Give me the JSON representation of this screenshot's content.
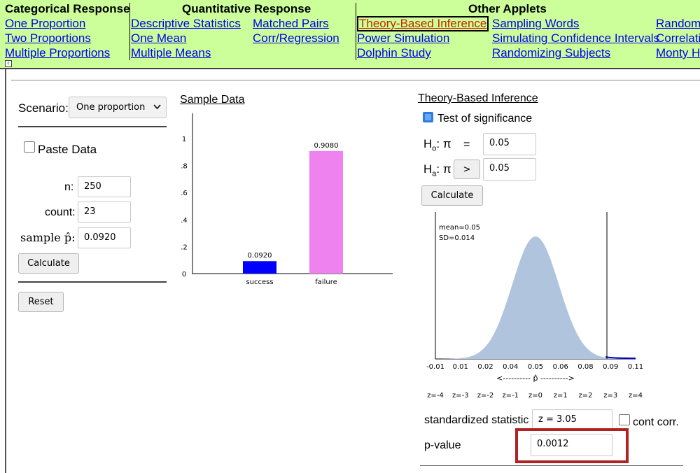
{
  "nav": {
    "categorical": {
      "heading": "Categorical Response",
      "links": [
        "One Proportion",
        "Two Proportions",
        "Multiple Proportions"
      ]
    },
    "quantitative": {
      "heading": "Quantitative Response",
      "col1": [
        "Descriptive Statistics",
        "One Mean",
        "Multiple Means"
      ],
      "col2": [
        "Matched Pairs",
        "Corr/Regression"
      ]
    },
    "other": {
      "heading": "Other Applets",
      "col1": [
        "Theory-Based Inference",
        "Power Simulation",
        "Dolphin Study"
      ],
      "col2": [
        "Sampling Words",
        "Simulating Confidence Intervals",
        "Randomizing Subjects"
      ],
      "col3": [
        "Random",
        "Correlatic",
        "Monty Ha"
      ]
    },
    "active_link": "Theory-Based Inference"
  },
  "left_panel": {
    "scenario_label": "Scenario:",
    "scenario_value": "One proportion",
    "paste_data_label": "Paste Data",
    "paste_data_checked": false,
    "n_label": "n:",
    "n_value": "250",
    "count_label": "count:",
    "count_value": "23",
    "phat_label": "sample p̂:",
    "phat_value": "0.0920",
    "calculate_label": "Calculate",
    "reset_label": "Reset"
  },
  "sample_data": {
    "title": "Sample Data",
    "chart_data": {
      "type": "bar",
      "categories": [
        "success",
        "failure"
      ],
      "values": [
        0.092,
        0.908
      ],
      "value_labels": [
        "0.0920",
        "0.9080"
      ],
      "colors": [
        "#0000ff",
        "#ee82ee"
      ],
      "yticks": [
        "0",
        ".2",
        ".4",
        ".6",
        ".8",
        "1"
      ],
      "ylim": [
        0,
        1
      ]
    }
  },
  "theory": {
    "title": "Theory-Based Inference",
    "test_label": "Test of significance",
    "test_checked": true,
    "h0_label": "H",
    "h0_sub": "o",
    "h0_param": ": π",
    "h0_op": "=",
    "h0_value": "0.05",
    "ha_label": "H",
    "ha_sub": "a",
    "ha_param": ": π",
    "ha_op": ">",
    "ha_value": "0.05",
    "calculate_label": "Calculate",
    "chart_data": {
      "type": "area",
      "mean_text": "mean=0.05",
      "sd_text": "SD=0.014",
      "mean": 0.05,
      "sd": 0.014,
      "observed": 0.092,
      "xlim": [
        -0.01,
        0.11
      ],
      "xticks": [
        "-0.01",
        "0.01",
        "0.02",
        "0.04",
        "0.05",
        "0.06",
        "0.08",
        "0.09",
        "0.11"
      ],
      "xlabel": "<---------- p̂ ---------->",
      "zticks": [
        "z=-4",
        "z=-3",
        "z=-2",
        "z=-1",
        "z=0",
        "z=1",
        "z=2",
        "z=3",
        "z=4"
      ],
      "fill": "#b0c4de"
    },
    "std_stat_label": "standardized statistic",
    "std_stat_value": "z = 3.05",
    "cont_corr_label": "cont corr.",
    "cont_corr_checked": false,
    "pvalue_label": "p-value",
    "pvalue_value": "0.0012",
    "highlight_color": "#b22222"
  }
}
